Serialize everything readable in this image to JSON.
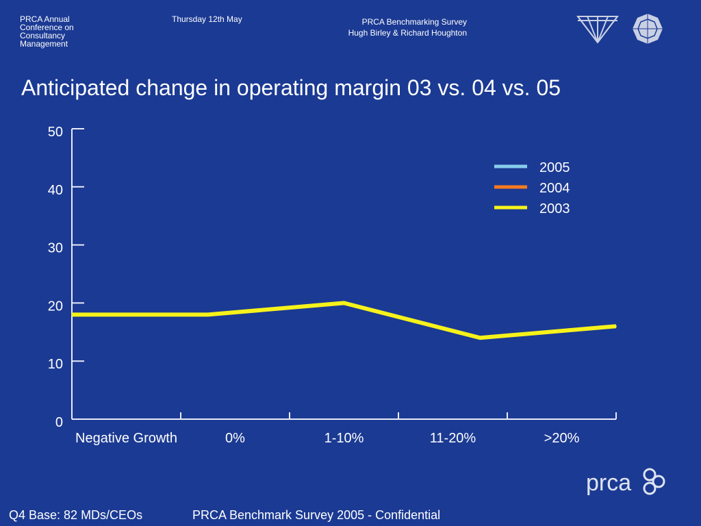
{
  "header": {
    "conference": "PRCA Annual Conference on Consultancy Management",
    "date": "Thursday 12th May",
    "survey_title": "PRCA Benchmarking Survey",
    "authors": "Hugh Birley & Richard Houghton"
  },
  "logos": {
    "brand_text": "prca"
  },
  "footer": {
    "base": "Q4 Base: 82 MDs/CEOs",
    "confidential": "PRCA Benchmark Survey 2005 - Confidential"
  },
  "colors": {
    "background": "#1b3a93",
    "axis": "#e8ecf6",
    "series_2005": "#87ceeb",
    "series_2004": "#f47a20",
    "series_2003": "#f6f21a"
  },
  "chart_data": {
    "type": "line",
    "title": "Anticipated change in operating margin 03 vs. 04 vs. 05",
    "xlabel": "",
    "ylabel": "",
    "categories": [
      "Negative Growth",
      "0%",
      "1-10%",
      "11-20%",
      ">20%"
    ],
    "ylim": [
      0,
      50
    ],
    "yticks": [
      0,
      10,
      20,
      30,
      40,
      50
    ],
    "grid": false,
    "legend_position": "top-right",
    "legend": [
      "2005",
      "2004",
      "2003"
    ],
    "series": [
      {
        "name": "2003",
        "values": [
          18,
          18,
          20,
          14,
          16
        ]
      }
    ]
  }
}
